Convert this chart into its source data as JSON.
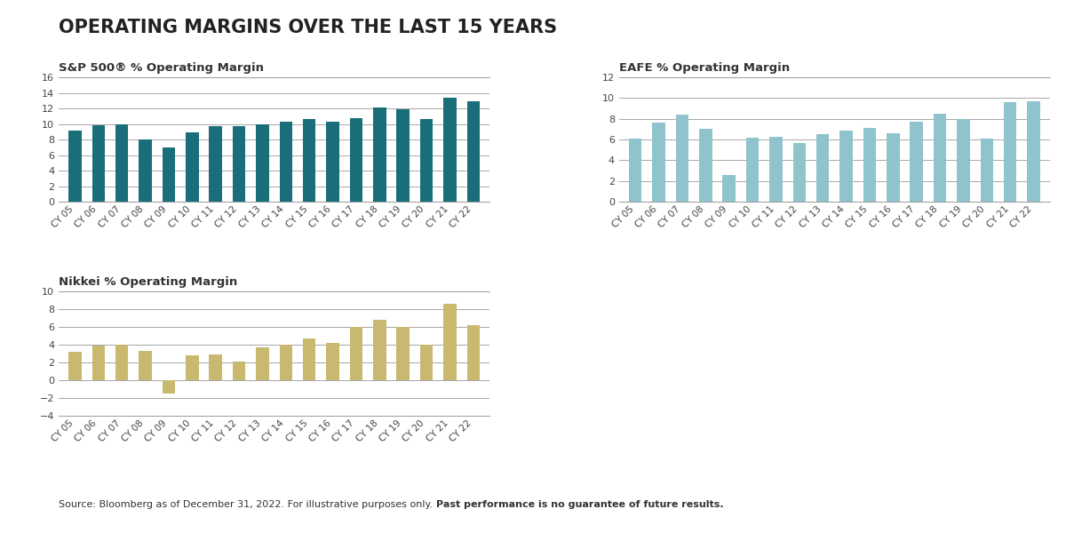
{
  "title": "OPERATING MARGINS OVER THE LAST 15 YEARS",
  "title_fontsize": 15,
  "subtitle_fontsize": 9.5,
  "categories": [
    "CY 05",
    "CY 06",
    "CY 07",
    "CY 08",
    "CY 09",
    "CY 10",
    "CY 11",
    "CY 12",
    "CY 13",
    "CY 14",
    "CY 15",
    "CY 16",
    "CY 17",
    "CY 18",
    "CY 19",
    "CY 20",
    "CY 21",
    "CY 22"
  ],
  "sp500": {
    "label": "S&P 500® % Operating Margin",
    "values": [
      9.2,
      9.8,
      10.0,
      8.0,
      7.0,
      8.9,
      9.7,
      9.7,
      9.9,
      10.3,
      10.6,
      10.3,
      10.8,
      12.1,
      11.9,
      10.6,
      13.4,
      12.9
    ],
    "color": "#1a6e7a",
    "ylim": [
      0,
      16
    ],
    "yticks": [
      0,
      2,
      4,
      6,
      8,
      10,
      12,
      14,
      16
    ]
  },
  "eafe": {
    "label": "EAFE % Operating Margin",
    "values": [
      6.1,
      7.6,
      8.4,
      7.0,
      2.6,
      6.2,
      6.3,
      5.7,
      6.5,
      6.9,
      7.1,
      6.6,
      7.7,
      8.5,
      8.0,
      6.1,
      9.6,
      9.7
    ],
    "color": "#8fc4cc",
    "ylim": [
      0,
      12
    ],
    "yticks": [
      0,
      2,
      4,
      6,
      8,
      10,
      12
    ]
  },
  "nikkei": {
    "label": "Nikkei % Operating Margin",
    "values": [
      3.2,
      3.9,
      4.0,
      3.3,
      -1.5,
      2.8,
      2.9,
      2.1,
      3.7,
      4.0,
      4.7,
      4.2,
      6.0,
      6.8,
      6.0,
      4.0,
      8.6,
      6.2
    ],
    "color": "#c8b870",
    "ylim": [
      -4,
      10
    ],
    "yticks": [
      -4,
      -2,
      0,
      2,
      4,
      6,
      8,
      10
    ]
  },
  "source_normal": "Source: Bloomberg as of December 31, 2022. For illustrative purposes only. ",
  "source_bold": "Past performance is no guarantee of future results.",
  "background_color": "#ffffff",
  "grid_color": "#999999",
  "text_color": "#444444",
  "tick_fontsize": 7.5,
  "ytick_fontsize": 8
}
